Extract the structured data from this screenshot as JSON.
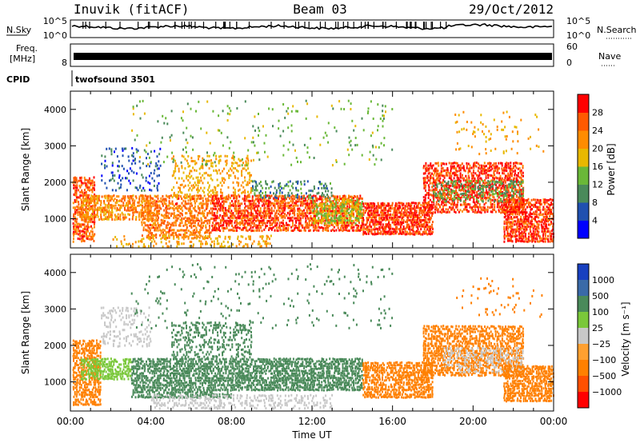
{
  "header": {
    "station": "Inuvik (fitACF)",
    "beam": "Beam 03",
    "date": "29/Oct/2012"
  },
  "strip_labels": {
    "nsky": "N.Sky",
    "nsky_ticks": [
      "10^5",
      "10^0"
    ],
    "nsearch": "N.Search",
    "nsearch_ticks": [
      "10^5",
      "10^0"
    ],
    "freq_line1": "Freq.",
    "freq_line2": "[MHz]",
    "freq_tick": "8",
    "nave": "Nave",
    "nave_ticks": [
      "60",
      "0"
    ],
    "cpid": "CPID",
    "cpid_value": "twofsound 3501"
  },
  "colors": {
    "frame": "#000000",
    "power_scale": [
      "#0000ff",
      "#2050b0",
      "#4a8a5a",
      "#6ab838",
      "#e8b800",
      "#ff8c00",
      "#ff5a00",
      "#ff0000"
    ],
    "velocity_scale": [
      "#1840c0",
      "#3a6aa8",
      "#4a8a5a",
      "#7ac83a",
      "#c8c8c8",
      "#ffa030",
      "#ff8000",
      "#ff5000",
      "#ff0000"
    ]
  },
  "chart_data": [
    {
      "type": "heatmap",
      "panel": "power",
      "ylabel": "Slant Range [km]",
      "x_ticks": [
        "00:00",
        "04:00",
        "08:00",
        "12:00",
        "16:00",
        "20:00",
        "00:00"
      ],
      "xlim_hours": [
        0,
        24
      ],
      "ylim": [
        200,
        4500
      ],
      "y_ticks": [
        1000,
        2000,
        3000,
        4000
      ],
      "colorbar_label": "Power [dB]",
      "colorbar_ticks": [
        "4",
        "8",
        "12",
        "16",
        "20",
        "24",
        "28"
      ],
      "colorbar_range": [
        0,
        32
      ],
      "regions": [
        {
          "t0": 0.1,
          "t1": 1.2,
          "r0": 400,
          "r1": 2200,
          "value": 26,
          "density": 0.7
        },
        {
          "t0": 0.5,
          "t1": 4.0,
          "r0": 1000,
          "r1": 1700,
          "value": 22,
          "density": 0.7
        },
        {
          "t0": 1.5,
          "t1": 4.5,
          "r0": 1800,
          "r1": 3000,
          "value": 6,
          "density": 0.18
        },
        {
          "t0": 3.5,
          "t1": 7.0,
          "r0": 500,
          "r1": 1700,
          "value": 24,
          "density": 0.65
        },
        {
          "t0": 5.0,
          "t1": 9.0,
          "r0": 1600,
          "r1": 2800,
          "value": 20,
          "density": 0.3
        },
        {
          "t0": 7.0,
          "t1": 14.5,
          "r0": 700,
          "r1": 1700,
          "value": 27,
          "density": 0.75
        },
        {
          "t0": 9.0,
          "t1": 13.0,
          "r0": 1600,
          "r1": 2100,
          "value": 10,
          "density": 0.35
        },
        {
          "t0": 12.0,
          "t1": 14.5,
          "r0": 900,
          "r1": 1600,
          "value": 16,
          "density": 0.55
        },
        {
          "t0": 14.5,
          "t1": 18.0,
          "r0": 600,
          "r1": 1500,
          "value": 28,
          "density": 0.8
        },
        {
          "t0": 17.5,
          "t1": 22.5,
          "r0": 1200,
          "r1": 2600,
          "value": 28,
          "density": 0.7
        },
        {
          "t0": 18.0,
          "t1": 22.5,
          "r0": 1500,
          "r1": 2100,
          "value": 12,
          "density": 0.35
        },
        {
          "t0": 21.5,
          "t1": 24.0,
          "r0": 400,
          "r1": 1600,
          "value": 28,
          "density": 0.8
        },
        {
          "t0": 2.0,
          "t1": 10.0,
          "r0": 250,
          "r1": 600,
          "value": 20,
          "density": 0.3
        },
        {
          "t0": 3.0,
          "t1": 16.0,
          "r0": 2500,
          "r1": 4300,
          "value": 14,
          "density": 0.05
        },
        {
          "t0": 19.0,
          "t1": 23.5,
          "r0": 2800,
          "r1": 4000,
          "value": 20,
          "density": 0.06
        }
      ]
    },
    {
      "type": "heatmap",
      "panel": "velocity",
      "ylabel": "Slant Range [km]",
      "xlabel": "Time UT",
      "x_ticks": [
        "00:00",
        "04:00",
        "08:00",
        "12:00",
        "16:00",
        "20:00",
        "00:00"
      ],
      "xlim_hours": [
        0,
        24
      ],
      "ylim": [
        200,
        4500
      ],
      "y_ticks": [
        1000,
        2000,
        3000,
        4000
      ],
      "colorbar_label": "Velocity [m s⁻¹]",
      "colorbar_ticks": [
        "1000",
        "500",
        "100",
        "25",
        "−25",
        "−100",
        "−500",
        "−1000"
      ],
      "regions": [
        {
          "t0": 0.1,
          "t1": 1.5,
          "r0": 400,
          "r1": 2200,
          "value": -150,
          "density": 0.7
        },
        {
          "t0": 0.5,
          "t1": 3.0,
          "r0": 1100,
          "r1": 1700,
          "value": 50,
          "density": 0.7
        },
        {
          "t0": 1.5,
          "t1": 4.0,
          "r0": 2000,
          "r1": 3100,
          "value": 0,
          "density": 0.3
        },
        {
          "t0": 3.0,
          "t1": 8.0,
          "r0": 600,
          "r1": 1700,
          "value": 200,
          "density": 0.7
        },
        {
          "t0": 5.0,
          "t1": 9.0,
          "r0": 1700,
          "r1": 2700,
          "value": 150,
          "density": 0.35
        },
        {
          "t0": 8.0,
          "t1": 14.5,
          "r0": 800,
          "r1": 1700,
          "value": 200,
          "density": 0.75
        },
        {
          "t0": 4.0,
          "t1": 13.0,
          "r0": 300,
          "r1": 700,
          "value": 0,
          "density": 0.4
        },
        {
          "t0": 14.5,
          "t1": 18.0,
          "r0": 600,
          "r1": 1600,
          "value": -150,
          "density": 0.75
        },
        {
          "t0": 17.5,
          "t1": 22.5,
          "r0": 1200,
          "r1": 2600,
          "value": -200,
          "density": 0.7
        },
        {
          "t0": 18.5,
          "t1": 22.5,
          "r0": 1300,
          "r1": 2000,
          "value": 0,
          "density": 0.35
        },
        {
          "t0": 21.5,
          "t1": 24.0,
          "r0": 500,
          "r1": 1500,
          "value": -200,
          "density": 0.8
        },
        {
          "t0": 3.0,
          "t1": 16.0,
          "r0": 2500,
          "r1": 4300,
          "value": 100,
          "density": 0.05
        },
        {
          "t0": 19.0,
          "t1": 23.5,
          "r0": 2800,
          "r1": 3900,
          "value": -200,
          "density": 0.06
        }
      ]
    }
  ]
}
